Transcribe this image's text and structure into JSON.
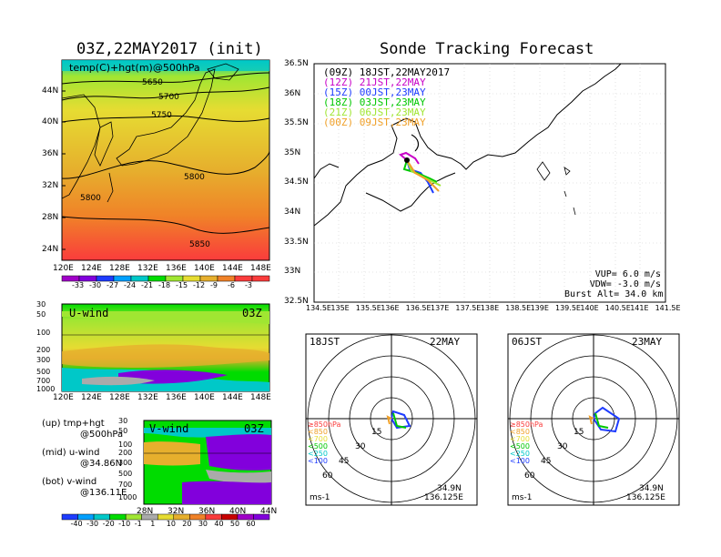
{
  "left": {
    "title": "03Z,22MAY2017 (init)",
    "map_label": "temp(C)+hgt(m)@500hPa",
    "contours": [
      "5650",
      "5700",
      "5750",
      "5800",
      "5800",
      "5850"
    ],
    "lat_ticks": [
      "44N",
      "40N",
      "36N",
      "32N",
      "28N",
      "24N"
    ],
    "lon_ticks": [
      "120E",
      "124E",
      "128E",
      "132E",
      "136E",
      "140E",
      "144E",
      "148E"
    ],
    "temp_colorbar": [
      "-33",
      "-30",
      "-27",
      "-24",
      "-21",
      "-18",
      "-15",
      "-12",
      "-9",
      "-6",
      "-3"
    ],
    "temp_colors": [
      "#a000c8",
      "#8200dc",
      "#1e3cff",
      "#00a0ff",
      "#00c8c8",
      "#00dc00",
      "#a0e632",
      "#e6dc32",
      "#e6af2d",
      "#f08228",
      "#fa3c3c"
    ],
    "uwind": {
      "label": "U-wind",
      "time": "03Z",
      "p_ticks": [
        "30",
        "50",
        "100",
        "200",
        "300",
        "500",
        "700",
        "1000"
      ],
      "lon_ticks": [
        "120E",
        "124E",
        "128E",
        "132E",
        "136E",
        "140E",
        "144E",
        "148E"
      ]
    },
    "vwind": {
      "label": "V-wind",
      "time": "03Z",
      "p_ticks": [
        "30",
        "50",
        "100",
        "200",
        "300",
        "500",
        "700",
        "1000"
      ],
      "lat_ticks": [
        "28N",
        "32N",
        "36N",
        "40N",
        "44N"
      ]
    },
    "notes": [
      {
        "a": "(up) tmp+hgt",
        "b": "@500hPa"
      },
      {
        "a": "(mid) u-wind",
        "b": "@34.86N"
      },
      {
        "a": "(bot) v-wind",
        "b": "@136.11E"
      }
    ],
    "wind_colorbar": [
      "-40",
      "-30",
      "-20",
      "-10",
      "-1",
      "1",
      "10",
      "20",
      "30",
      "40",
      "50",
      "60"
    ],
    "wind_colors": [
      "#1e3cff",
      "#00a0ff",
      "#00c8c8",
      "#00dc00",
      "#a0e632",
      "#aaaaaa",
      "#e6dc32",
      "#e6af2d",
      "#f08228",
      "#fa3c3c",
      "#c80000",
      "#a000c8",
      "#8200dc"
    ]
  },
  "right": {
    "title": "Sonde Tracking Forecast",
    "legend": [
      {
        "text": "(09Z)  18JST,22MAY2017",
        "color": "#000000"
      },
      {
        "text": "(12Z)  21JST,22MAY",
        "color": "#c800c8"
      },
      {
        "text": "(15Z)  00JST,23MAY",
        "color": "#1e3cff"
      },
      {
        "text": "(18Z)  03JST,23MAY",
        "color": "#00c800"
      },
      {
        "text": "(21Z)  06JST,23MAY",
        "color": "#a0e632"
      },
      {
        "text": "(00Z)  09JST,23MAY",
        "color": "#f0a028"
      }
    ],
    "lat_ticks": [
      "36.5N",
      "36N",
      "35.5N",
      "35N",
      "34.5N",
      "34N",
      "33.5N",
      "33N",
      "32.5N"
    ],
    "lon_ticks": [
      "134.5E",
      "135E",
      "135.5E",
      "136E",
      "136.5E",
      "137E",
      "137.5E",
      "138E",
      "138.5E",
      "139E",
      "139.5E",
      "140E",
      "140.5E",
      "141E",
      "141.5E"
    ],
    "params": [
      "VUP=  6.0  m/s",
      "VDW= -3.0  m/s",
      "Burst Alt=  34.0  km"
    ]
  },
  "polar": [
    {
      "time": "18JST",
      "date": "22MAY",
      "lat": "34.9N",
      "lon": "136.125E",
      "unit": "ms-1",
      "rings": [
        "15",
        "30",
        "45",
        "60"
      ],
      "levels": [
        {
          "text": "≥850hPa",
          "color": "#fa3c3c"
        },
        {
          "text": "<850",
          "color": "#f0a028"
        },
        {
          "text": "<700",
          "color": "#e6dc32"
        },
        {
          "text": "<500",
          "color": "#00c800"
        },
        {
          "text": "<250",
          "color": "#00c8c8"
        },
        {
          "text": "<100",
          "color": "#1e3cff"
        }
      ]
    },
    {
      "time": "06JST",
      "date": "23MAY",
      "lat": "34.9N",
      "lon": "136.125E",
      "unit": "ms-1",
      "rings": [
        "15",
        "30",
        "45",
        "60"
      ],
      "levels": [
        {
          "text": "≥850hPa",
          "color": "#fa3c3c"
        },
        {
          "text": "<850",
          "color": "#f0a028"
        },
        {
          "text": "<700",
          "color": "#e6dc32"
        },
        {
          "text": "<500",
          "color": "#00c800"
        },
        {
          "text": "<250",
          "color": "#00c8c8"
        },
        {
          "text": "<100",
          "color": "#1e3cff"
        }
      ]
    }
  ]
}
